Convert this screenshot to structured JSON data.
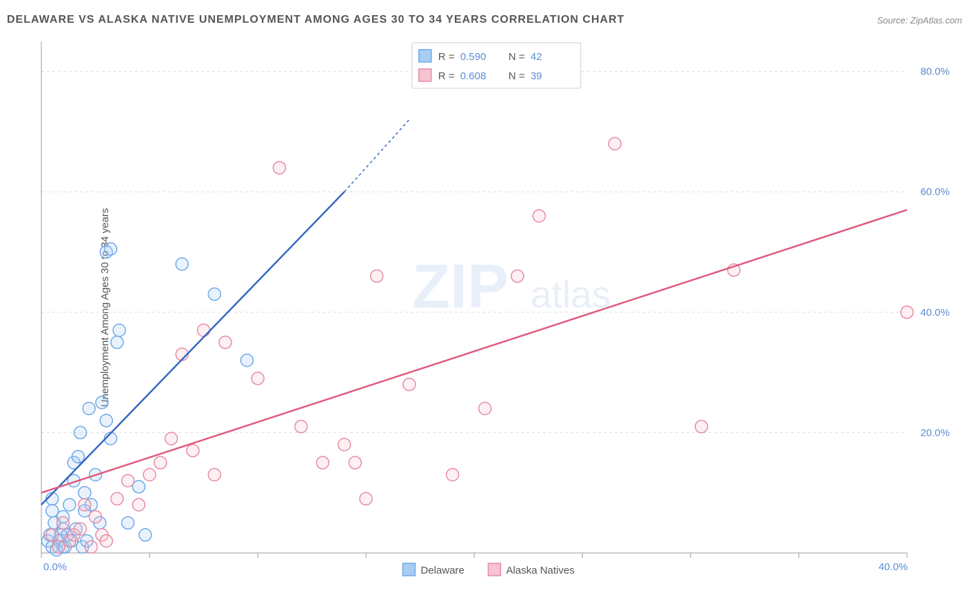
{
  "title": "DELAWARE VS ALASKA NATIVE UNEMPLOYMENT AMONG AGES 30 TO 34 YEARS CORRELATION CHART",
  "source": "Source: ZipAtlas.com",
  "y_axis_label": "Unemployment Among Ages 30 to 34 years",
  "watermark_main": "ZIP",
  "watermark_sub": "atlas",
  "chart": {
    "type": "scatter",
    "xlim": [
      0,
      40
    ],
    "ylim": [
      0,
      85
    ],
    "x_ticks": [
      0,
      5,
      10,
      15,
      20,
      25,
      30,
      35,
      40
    ],
    "x_tick_labels": [
      "0.0%",
      "",
      "",
      "",
      "",
      "",
      "",
      "",
      "40.0%"
    ],
    "y_ticks": [
      20,
      40,
      60,
      80
    ],
    "y_tick_labels": [
      "20.0%",
      "40.0%",
      "60.0%",
      "80.0%"
    ],
    "background_color": "#ffffff",
    "grid_color": "#dddddd",
    "axis_color": "#999999",
    "tick_label_color": "#5b8dd6",
    "marker_radius": 9,
    "series": [
      {
        "name": "Delaware",
        "color_stroke": "#6fa8e8",
        "color_fill": "#a8cdf2",
        "trend_color": "#3568c0",
        "r": "0.590",
        "n": "42",
        "points": [
          [
            0.3,
            2
          ],
          [
            0.4,
            3
          ],
          [
            0.5,
            1
          ],
          [
            0.6,
            5
          ],
          [
            0.8,
            2
          ],
          [
            1.0,
            4
          ],
          [
            1.0,
            6
          ],
          [
            1.2,
            3
          ],
          [
            1.3,
            8
          ],
          [
            1.5,
            12
          ],
          [
            1.5,
            15
          ],
          [
            1.7,
            16
          ],
          [
            1.8,
            20
          ],
          [
            2.0,
            10
          ],
          [
            2.0,
            7
          ],
          [
            2.2,
            24
          ],
          [
            2.5,
            13
          ],
          [
            2.7,
            5
          ],
          [
            2.8,
            25
          ],
          [
            3.0,
            22
          ],
          [
            3.2,
            19
          ],
          [
            3.5,
            35
          ],
          [
            3.6,
            37
          ],
          [
            4.0,
            5
          ],
          [
            4.5,
            11
          ],
          [
            4.8,
            3
          ],
          [
            1.0,
            1
          ],
          [
            0.7,
            0.5
          ],
          [
            0.9,
            3
          ],
          [
            1.1,
            1
          ],
          [
            1.4,
            2
          ],
          [
            1.6,
            4
          ],
          [
            1.9,
            1
          ],
          [
            2.1,
            2
          ],
          [
            2.3,
            8
          ],
          [
            0.5,
            7
          ],
          [
            0.5,
            9
          ],
          [
            6.5,
            48
          ],
          [
            8.0,
            43
          ],
          [
            9.5,
            32
          ],
          [
            3.0,
            50
          ],
          [
            3.2,
            50.5
          ]
        ],
        "trend": {
          "x1": 0,
          "y1": 8,
          "x2": 14,
          "y2": 60,
          "dash_x2": 17,
          "dash_y2": 72
        }
      },
      {
        "name": "Alaska Natives",
        "color_stroke": "#e88ba4",
        "color_fill": "#f5c3d1",
        "trend_color": "#e05a7e",
        "r": "0.608",
        "n": "39",
        "points": [
          [
            0.5,
            3
          ],
          [
            0.8,
            1
          ],
          [
            1.0,
            5
          ],
          [
            1.3,
            2
          ],
          [
            1.5,
            3
          ],
          [
            1.8,
            4
          ],
          [
            2.0,
            8
          ],
          [
            2.3,
            1
          ],
          [
            2.5,
            6
          ],
          [
            2.8,
            3
          ],
          [
            3.0,
            2
          ],
          [
            3.5,
            9
          ],
          [
            4.0,
            12
          ],
          [
            4.5,
            8
          ],
          [
            5.0,
            13
          ],
          [
            5.5,
            15
          ],
          [
            6.0,
            19
          ],
          [
            6.5,
            33
          ],
          [
            7.0,
            17
          ],
          [
            7.5,
            37
          ],
          [
            8.0,
            13
          ],
          [
            8.5,
            35
          ],
          [
            10.0,
            29
          ],
          [
            11.0,
            64
          ],
          [
            12.0,
            21
          ],
          [
            13.0,
            15
          ],
          [
            14.0,
            18
          ],
          [
            14.5,
            15
          ],
          [
            15.0,
            9
          ],
          [
            15.5,
            46
          ],
          [
            17.0,
            28
          ],
          [
            19.0,
            13
          ],
          [
            20.5,
            24
          ],
          [
            22.0,
            46
          ],
          [
            23.0,
            56
          ],
          [
            26.5,
            68
          ],
          [
            30.5,
            21
          ],
          [
            32.0,
            47
          ],
          [
            40.0,
            40
          ]
        ],
        "trend": {
          "x1": 0,
          "y1": 10,
          "x2": 40,
          "y2": 57
        }
      }
    ]
  },
  "legend_top": {
    "rows": [
      {
        "swatch_stroke": "#6fa8e8",
        "swatch_fill": "#a8cdf2",
        "r_label": "R =",
        "r_val": "0.590",
        "n_label": "N =",
        "n_val": "42"
      },
      {
        "swatch_stroke": "#e88ba4",
        "swatch_fill": "#f5c3d1",
        "r_label": "R =",
        "r_val": "0.608",
        "n_label": "N =",
        "n_val": "39"
      }
    ]
  },
  "legend_bottom": [
    {
      "swatch_stroke": "#6fa8e8",
      "swatch_fill": "#a8cdf2",
      "label": "Delaware"
    },
    {
      "swatch_stroke": "#e88ba4",
      "swatch_fill": "#f5c3d1",
      "label": "Alaska Natives"
    }
  ]
}
